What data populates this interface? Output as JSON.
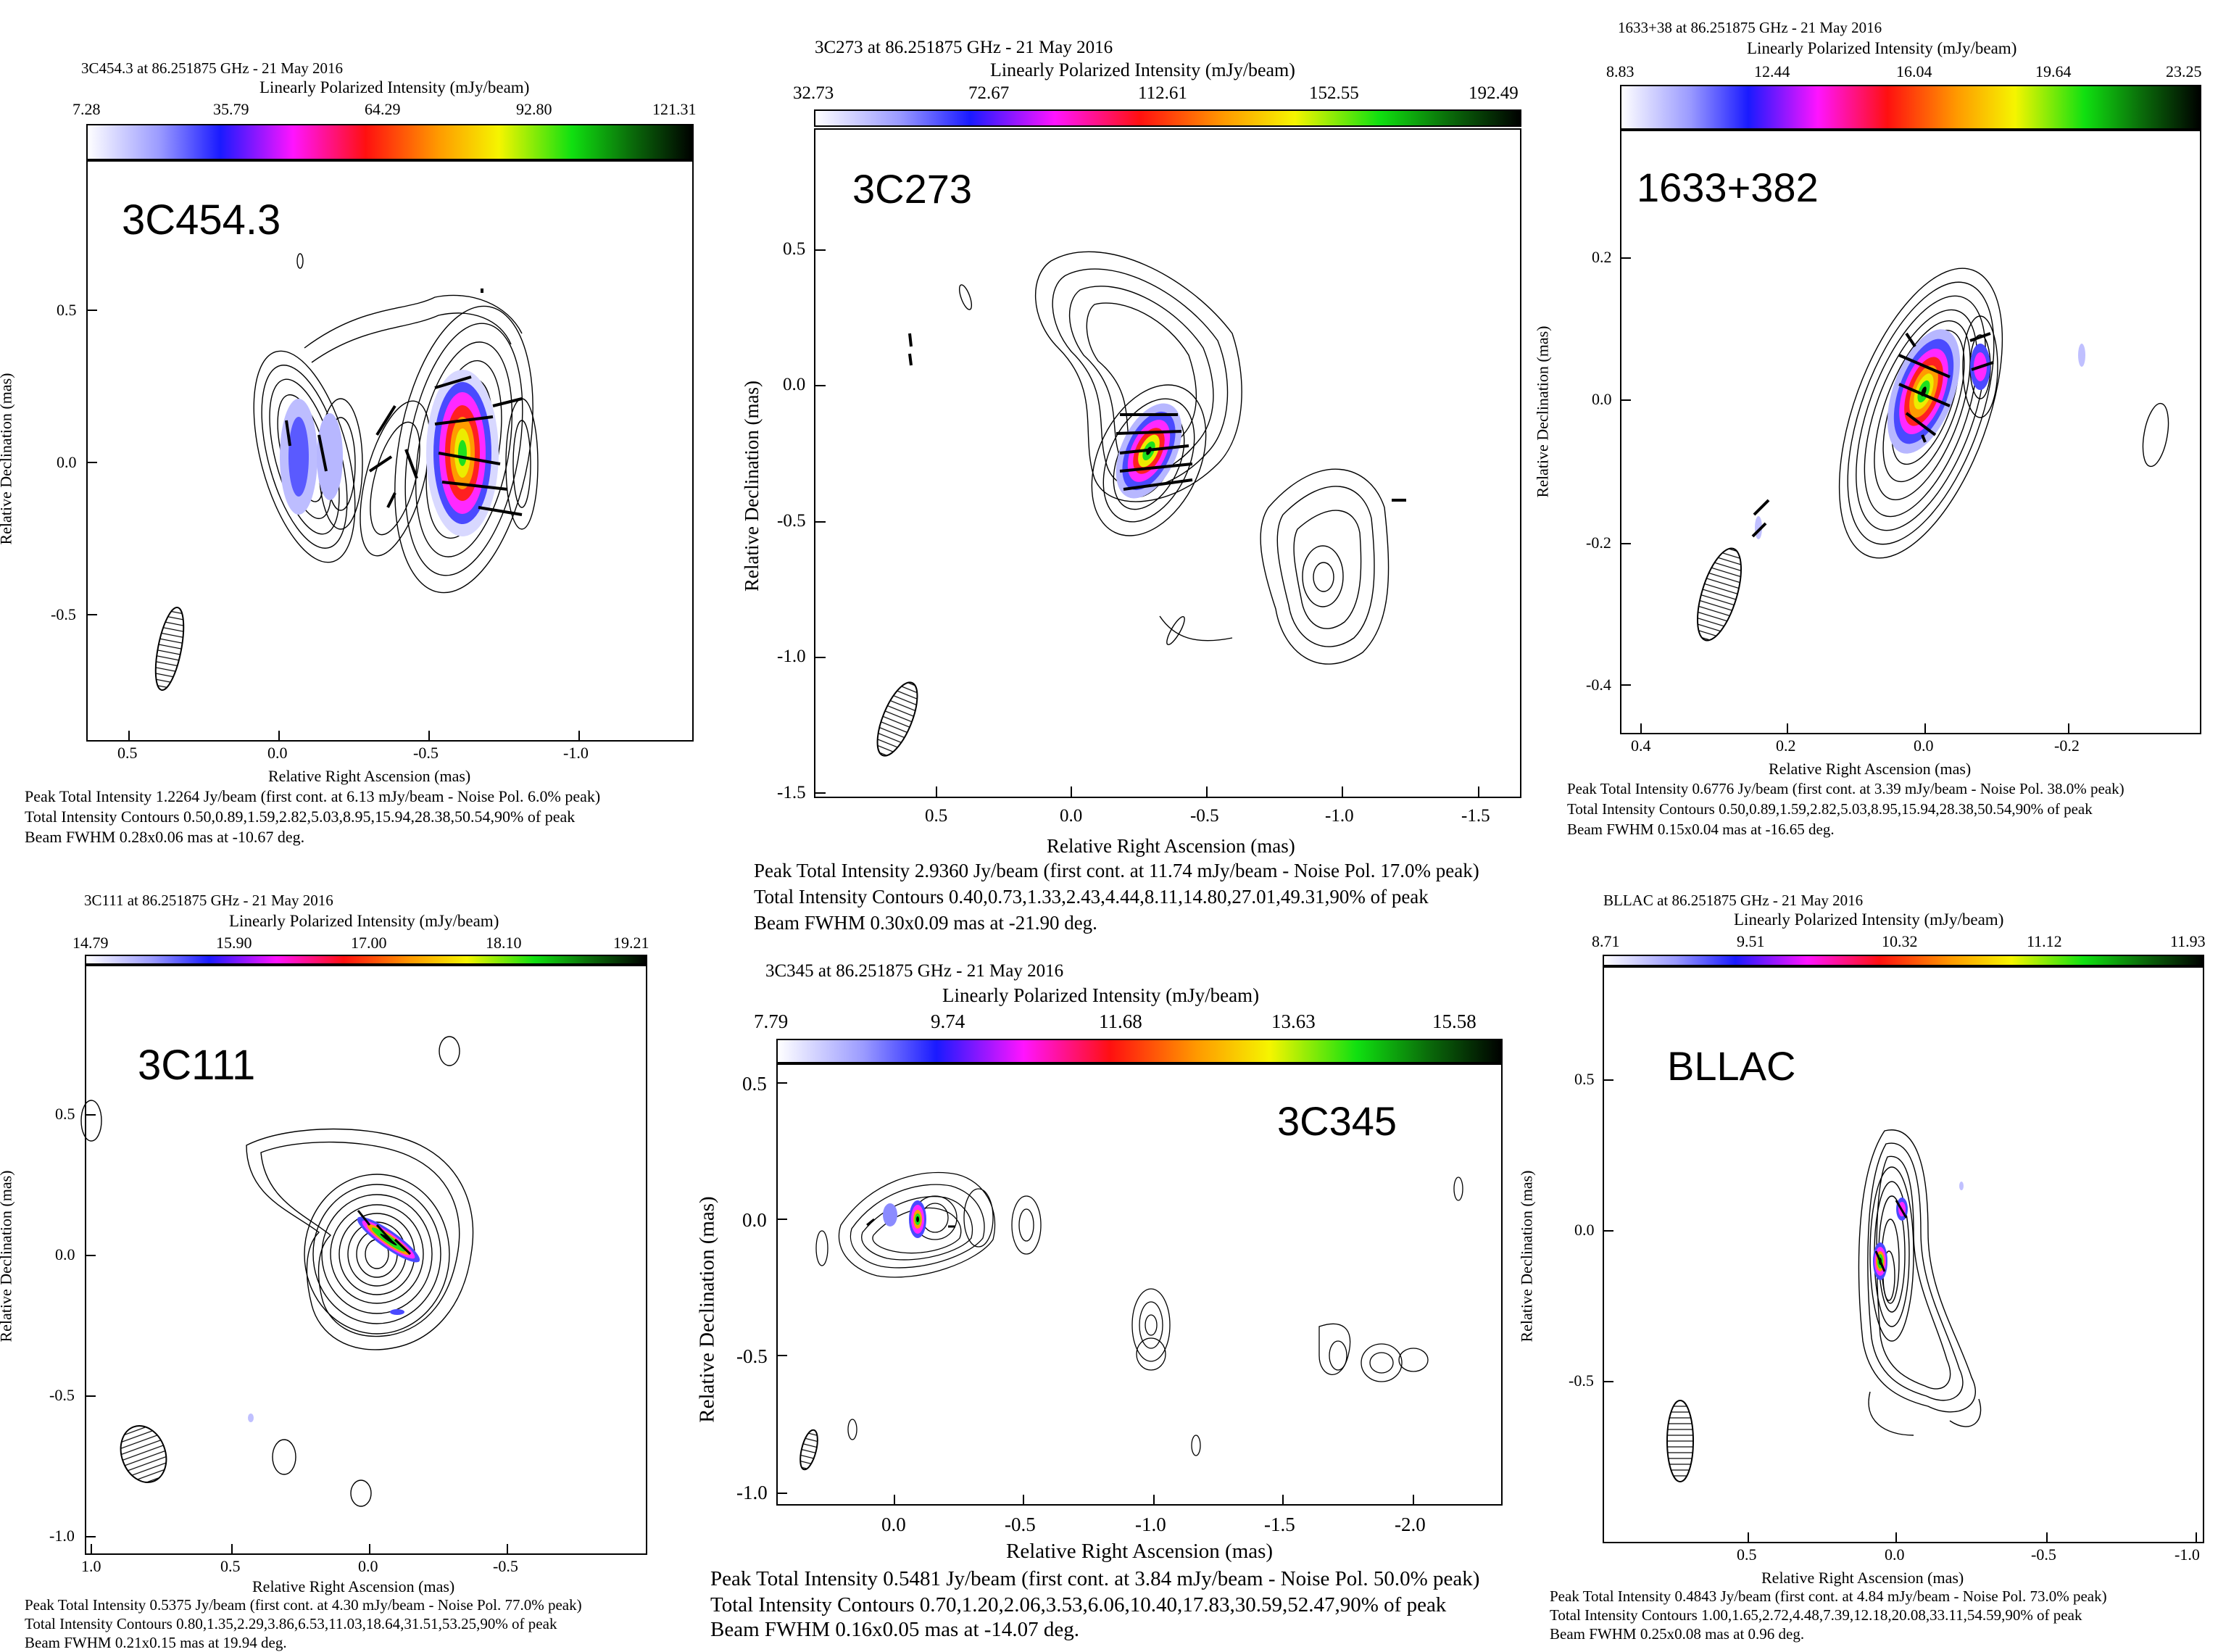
{
  "figure": {
    "panels": [
      {
        "id": "p1",
        "header": "3C454.3 at 86.251875 GHz - 21 May 2016",
        "colorbar_title": "Linearly Polarized Intensity (mJy/beam)",
        "colorbar_ticks": [
          "7.28",
          "35.79",
          "64.29",
          "92.80",
          "121.31"
        ],
        "source_label": "3C454.3",
        "xlabel": "Relative Right Ascension (mas)",
        "ylabel": "Relative Declination (mas)",
        "xticks": [
          "0.5",
          "0.0",
          "-0.5",
          "-1.0"
        ],
        "yticks": [
          "0.5",
          "0.0",
          "-0.5"
        ],
        "caption": [
          "Peak Total Intensity 1.2264 Jy/beam (first cont. at 6.13 mJy/beam - Noise Pol. 6.0% peak)",
          "Total Intensity Contours 0.50,0.89,1.59,2.82,5.03,8.95,15.94,28.38,50.54,90% of peak",
          "Beam FWHM 0.28x0.06 mas at -10.67 deg."
        ]
      },
      {
        "id": "p2",
        "header": "3C273 at 86.251875 GHz - 21 May 2016",
        "colorbar_title": "Linearly Polarized Intensity (mJy/beam)",
        "colorbar_ticks": [
          "32.73",
          "72.67",
          "112.61",
          "152.55",
          "192.49"
        ],
        "source_label": "3C273",
        "xlabel": "Relative Right Ascension (mas)",
        "ylabel": "Relative Declination (mas)",
        "xticks": [
          "0.5",
          "0.0",
          "-0.5",
          "-1.0",
          "-1.5"
        ],
        "yticks": [
          "0.5",
          "0.0",
          "-0.5",
          "-1.0",
          "-1.5"
        ],
        "caption": [
          "Peak Total Intensity 2.9360 Jy/beam (first cont. at 11.74 mJy/beam - Noise Pol. 17.0% peak)",
          "Total Intensity Contours 0.40,0.73,1.33,2.43,4.44,8.11,14.80,27.01,49.31,90% of peak",
          "Beam FWHM 0.30x0.09 mas at -21.90 deg."
        ]
      },
      {
        "id": "p3",
        "header": "1633+38 at 86.251875 GHz - 21 May 2016",
        "colorbar_title": "Linearly Polarized Intensity (mJy/beam)",
        "colorbar_ticks": [
          "8.83",
          "12.44",
          "16.04",
          "19.64",
          "23.25"
        ],
        "source_label": "1633+382",
        "xlabel": "Relative Right Ascension (mas)",
        "ylabel": "Relative Declination (mas)",
        "xticks": [
          "0.4",
          "0.2",
          "0.0",
          "-0.2"
        ],
        "yticks": [
          "0.2",
          "0.0",
          "-0.2",
          "-0.4"
        ],
        "caption": [
          "Peak Total Intensity 0.6776 Jy/beam (first cont. at 3.39 mJy/beam - Noise Pol. 38.0% peak)",
          "Total Intensity Contours 0.50,0.89,1.59,2.82,5.03,8.95,15.94,28.38,50.54,90% of peak",
          "Beam FWHM 0.15x0.04 mas at -16.65 deg."
        ]
      },
      {
        "id": "p4",
        "header": "3C111 at 86.251875 GHz - 21 May 2016",
        "colorbar_title": "Linearly Polarized Intensity (mJy/beam)",
        "colorbar_ticks": [
          "14.79",
          "15.90",
          "17.00",
          "18.10",
          "19.21"
        ],
        "source_label": "3C111",
        "xlabel": "Relative Right Ascension (mas)",
        "ylabel": "Relative Declination (mas)",
        "xticks": [
          "1.0",
          "0.5",
          "0.0",
          "-0.5"
        ],
        "yticks": [
          "0.5",
          "0.0",
          "-0.5",
          "-1.0"
        ],
        "caption": [
          "Peak Total Intensity 0.5375 Jy/beam (first cont. at 4.30 mJy/beam - Noise Pol. 77.0% peak)",
          "Total Intensity Contours 0.80,1.35,2.29,3.86,6.53,11.03,18.64,31.51,53.25,90% of peak",
          "Beam FWHM 0.21x0.15 mas at 19.94 deg."
        ]
      },
      {
        "id": "p5",
        "header": "3C345 at 86.251875 GHz - 21 May 2016",
        "colorbar_title": "Linearly Polarized Intensity (mJy/beam)",
        "colorbar_ticks": [
          "7.79",
          "9.74",
          "11.68",
          "13.63",
          "15.58"
        ],
        "source_label": "3C345",
        "xlabel": "Relative Right Ascension (mas)",
        "ylabel": "Relative Declination (mas)",
        "xticks": [
          "0.0",
          "-0.5",
          "-1.0",
          "-1.5",
          "-2.0"
        ],
        "yticks": [
          "0.5",
          "0.0",
          "-0.5",
          "-1.0"
        ],
        "caption": [
          "Peak Total Intensity 0.5481 Jy/beam (first cont. at 3.84 mJy/beam - Noise Pol. 50.0% peak)",
          "Total Intensity Contours 0.70,1.20,2.06,3.53,6.06,10.40,17.83,30.59,52.47,90% of peak",
          "Beam FWHM 0.16x0.05 mas at -14.07 deg."
        ]
      },
      {
        "id": "p6",
        "header": "BLLAC at 86.251875 GHz - 21 May 2016",
        "colorbar_title": "Linearly Polarized Intensity (mJy/beam)",
        "colorbar_ticks": [
          "8.71",
          "9.51",
          "10.32",
          "11.12",
          "11.93"
        ],
        "source_label": "BLLAC",
        "xlabel": "Relative Right Ascension (mas)",
        "ylabel": "Relative Declination (mas)",
        "xticks": [
          "0.5",
          "0.0",
          "-0.5",
          "-1.0"
        ],
        "yticks": [
          "0.5",
          "0.0",
          "-0.5"
        ],
        "caption": [
          "Peak Total Intensity 0.4843 Jy/beam (first cont. at 4.84 mJy/beam - Noise Pol. 73.0% peak)",
          "Total Intensity Contours 1.00,1.65,2.72,4.48,7.39,12.18,20.08,33.11,54.59,90% of peak",
          "Beam FWHM 0.25x0.08 mas at 0.96 deg."
        ]
      }
    ]
  }
}
